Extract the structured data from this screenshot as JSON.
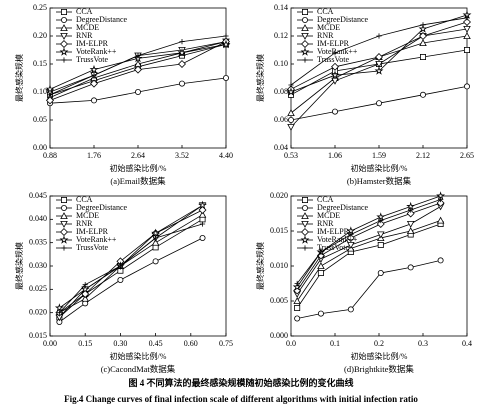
{
  "figure": {
    "caption_cn": "图 4 不同算法的最终感染规模随初始感染比例的变化曲线",
    "caption_en": "Fig.4 Change curves of final infection scale of different algorithms with initial infection ratio"
  },
  "chart_data": [
    {
      "type": "line",
      "caption": "(a)Email数据集",
      "xlabel": "初始感染比例/%",
      "ylabel": "最终感染规模",
      "legend": "upper-left",
      "x": [
        0.88,
        1.76,
        2.64,
        3.52,
        4.4
      ],
      "xlim": [
        0.88,
        4.4
      ],
      "xticks": [
        0.88,
        1.76,
        2.64,
        3.52,
        {
          "value": 4.4,
          "label": "4.40"
        }
      ],
      "ylim": [
        0,
        0.25
      ],
      "yticks": [
        {
          "value": 0,
          "label": "0.00"
        },
        0.05,
        {
          "value": 0.1,
          "label": "0.10"
        },
        0.15,
        {
          "value": 0.2,
          "label": "0.20"
        },
        0.25
      ],
      "series": [
        {
          "name": "CCA",
          "color": "#000000",
          "marker": "square",
          "values": [
            0.095,
            0.12,
            0.145,
            0.165,
            0.185
          ]
        },
        {
          "name": "DegreeDistance",
          "color": "#000000",
          "marker": "circle",
          "values": [
            0.08,
            0.085,
            0.1,
            0.115,
            0.125
          ]
        },
        {
          "name": "MCDE",
          "color": "#000000",
          "marker": "triangle",
          "values": [
            0.09,
            0.125,
            0.15,
            0.17,
            0.19
          ]
        },
        {
          "name": "RNR",
          "color": "#000000",
          "marker": "triangle-down",
          "values": [
            0.1,
            0.13,
            0.165,
            0.175,
            0.19
          ]
        },
        {
          "name": "IM-ELPR",
          "color": "#000000",
          "marker": "diamond",
          "values": [
            0.085,
            0.115,
            0.14,
            0.15,
            0.19
          ]
        },
        {
          "name": "VoteRank++",
          "color": "#000000",
          "marker": "star",
          "values": [
            0.105,
            0.14,
            0.16,
            0.17,
            0.185
          ]
        },
        {
          "name": "TrussVote",
          "color": "#000000",
          "marker": "plus",
          "values": [
            0.095,
            0.13,
            0.165,
            0.19,
            0.2
          ]
        }
      ]
    },
    {
      "type": "line",
      "caption": "(b)Hamster数据集",
      "xlabel": "初始感染比例/%",
      "ylabel": "最终感染规模",
      "legend": "upper-left",
      "x": [
        0.53,
        1.06,
        1.59,
        2.12,
        2.65
      ],
      "xlim": [
        0.53,
        2.65
      ],
      "xticks": [
        0.53,
        1.06,
        1.59,
        2.12,
        2.65
      ],
      "ylim": [
        0.04,
        0.14
      ],
      "yticks": [
        0.04,
        0.06,
        0.08,
        {
          "value": 0.1,
          "label": "0.10"
        },
        0.12,
        0.14
      ],
      "series": [
        {
          "name": "CCA",
          "color": "#000000",
          "marker": "square",
          "values": [
            0.078,
            0.095,
            0.1,
            0.105,
            0.11
          ]
        },
        {
          "name": "DegreeDistance",
          "color": "#000000",
          "marker": "circle",
          "values": [
            0.06,
            0.066,
            0.072,
            0.078,
            0.084
          ]
        },
        {
          "name": "MCDE",
          "color": "#000000",
          "marker": "triangle",
          "values": [
            0.065,
            0.09,
            0.105,
            0.115,
            0.12
          ]
        },
        {
          "name": "RNR",
          "color": "#000000",
          "marker": "triangle-down",
          "values": [
            0.055,
            0.088,
            0.1,
            0.12,
            0.125
          ]
        },
        {
          "name": "IM-ELPR",
          "color": "#000000",
          "marker": "diamond",
          "values": [
            0.082,
            0.098,
            0.105,
            0.12,
            0.13
          ]
        },
        {
          "name": "VoteRank++",
          "color": "#000000",
          "marker": "star",
          "values": [
            0.08,
            0.092,
            0.095,
            0.125,
            0.135
          ]
        },
        {
          "name": "TrussVote",
          "color": "#000000",
          "marker": "plus",
          "values": [
            0.085,
            0.108,
            0.12,
            0.128,
            0.133
          ]
        }
      ]
    },
    {
      "type": "line",
      "caption": "(c)CacondMat数据集",
      "xlabel": "初始感染比例/%",
      "ylabel": "最终感染规模",
      "legend": "upper-left",
      "x": [
        0.04,
        0.15,
        0.3,
        0.45,
        0.65
      ],
      "xlim": [
        0,
        0.75
      ],
      "xticks": [
        {
          "value": 0,
          "label": "0.00"
        },
        0.15,
        {
          "value": 0.3,
          "label": "0.30"
        },
        0.45,
        {
          "value": 0.6,
          "label": "0.60"
        },
        0.75
      ],
      "ylim": [
        0.015,
        0.045
      ],
      "yticks": [
        0.015,
        {
          "value": 0.02,
          "label": "0.020"
        },
        0.025,
        {
          "value": 0.03,
          "label": "0.030"
        },
        0.035,
        {
          "value": 0.04,
          "label": "0.040"
        },
        0.045
      ],
      "series": [
        {
          "name": "CCA",
          "color": "#000000",
          "marker": "square",
          "values": [
            0.019,
            0.024,
            0.029,
            0.034,
            0.04
          ]
        },
        {
          "name": "DegreeDistance",
          "color": "#000000",
          "marker": "circle",
          "values": [
            0.018,
            0.022,
            0.027,
            0.031,
            0.036
          ]
        },
        {
          "name": "MCDE",
          "color": "#000000",
          "marker": "triangle",
          "values": [
            0.02,
            0.023,
            0.03,
            0.035,
            0.041
          ]
        },
        {
          "name": "RNR",
          "color": "#000000",
          "marker": "triangle-down",
          "values": [
            0.019,
            0.025,
            0.03,
            0.036,
            0.043
          ]
        },
        {
          "name": "IM-ELPR",
          "color": "#000000",
          "marker": "diamond",
          "values": [
            0.02,
            0.024,
            0.031,
            0.037,
            0.042
          ]
        },
        {
          "name": "VoteRank++",
          "color": "#000000",
          "marker": "star",
          "values": [
            0.021,
            0.025,
            0.03,
            0.037,
            0.043
          ]
        },
        {
          "name": "TrussVote",
          "color": "#000000",
          "marker": "plus",
          "values": [
            0.02,
            0.026,
            0.03,
            0.036,
            0.039
          ]
        }
      ]
    },
    {
      "type": "line",
      "caption": "(d)Brightkite数据集",
      "xlabel": "初始感染比例/%",
      "ylabel": "最终感染规模",
      "legend": "upper-left",
      "x": [
        0.014,
        0.068,
        0.136,
        0.204,
        0.272,
        0.34
      ],
      "xlim": [
        0,
        0.4
      ],
      "xticks": [
        {
          "value": 0,
          "label": "0.0"
        },
        0.1,
        0.2,
        0.3,
        0.4
      ],
      "ylim": [
        0,
        0.02
      ],
      "yticks": [
        {
          "value": 0,
          "label": "0.000"
        },
        0.005,
        {
          "value": 0.01,
          "label": "0.010"
        },
        0.015,
        {
          "value": 0.02,
          "label": "0.020"
        }
      ],
      "series": [
        {
          "name": "CCA",
          "color": "#000000",
          "marker": "square",
          "values": [
            0.004,
            0.009,
            0.012,
            0.013,
            0.0145,
            0.016
          ]
        },
        {
          "name": "DegreeDistance",
          "color": "#000000",
          "marker": "circle",
          "values": [
            0.0025,
            0.0032,
            0.0038,
            0.009,
            0.0098,
            0.0108
          ]
        },
        {
          "name": "MCDE",
          "color": "#000000",
          "marker": "triangle",
          "values": [
            0.005,
            0.01,
            0.0125,
            0.014,
            0.015,
            0.0165
          ]
        },
        {
          "name": "RNR",
          "color": "#000000",
          "marker": "triangle-down",
          "values": [
            0.006,
            0.011,
            0.013,
            0.0145,
            0.016,
            0.0185
          ]
        },
        {
          "name": "IM-ELPR",
          "color": "#000000",
          "marker": "diamond",
          "values": [
            0.0065,
            0.0115,
            0.014,
            0.016,
            0.0175,
            0.019
          ]
        },
        {
          "name": "VoteRank++",
          "color": "#000000",
          "marker": "star",
          "values": [
            0.007,
            0.012,
            0.015,
            0.017,
            0.0185,
            0.02
          ]
        },
        {
          "name": "TrussVote",
          "color": "#000000",
          "marker": "plus",
          "values": [
            0.0075,
            0.012,
            0.0145,
            0.0165,
            0.018,
            0.0195
          ]
        }
      ]
    }
  ]
}
